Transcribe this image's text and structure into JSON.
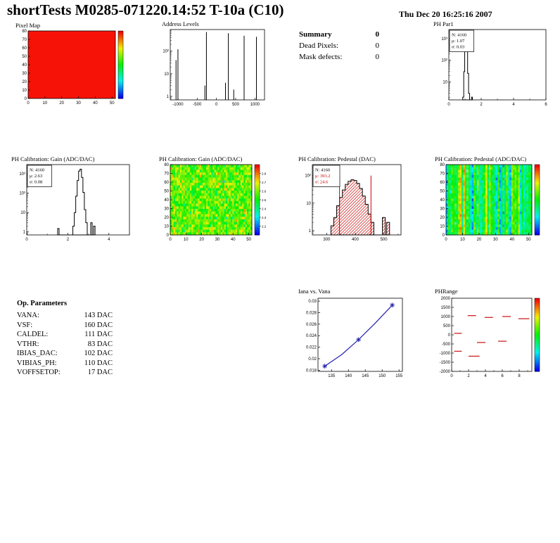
{
  "header": {
    "title": "shortTests M0285-071220.14:52 T-10a (C10)",
    "date": "Thu Dec 20 16:25:16 2007"
  },
  "summary": {
    "rows": [
      {
        "label": "Summary",
        "value": "0"
      },
      {
        "label": "Dead Pixels:",
        "value": "0"
      },
      {
        "label": "Mask defects:",
        "value": "0"
      }
    ]
  },
  "op_parameters": {
    "title": "Op. Parameters",
    "items": [
      {
        "name": "VANA:",
        "value": "143 DAC"
      },
      {
        "name": "VSF:",
        "value": "160 DAC"
      },
      {
        "name": "CALDEL:",
        "value": "111 DAC"
      },
      {
        "name": "VTHR:",
        "value": "83 DAC"
      },
      {
        "name": "IBIAS_DAC:",
        "value": "102 DAC"
      },
      {
        "name": "VIBIAS_PH:",
        "value": "110 DAC"
      },
      {
        "name": "VOFFSETOP:",
        "value": "17 DAC"
      }
    ]
  },
  "chart_data": [
    {
      "id": "pixel_map",
      "type": "heatmap",
      "title": "Pixel Map",
      "xlim": [
        0,
        52
      ],
      "xticks": [
        0,
        10,
        20,
        30,
        40,
        50
      ],
      "ylim": [
        0,
        80
      ],
      "yticks": [
        0,
        10,
        20,
        30,
        40,
        50,
        60,
        70,
        80
      ],
      "fill": "#f71207",
      "colorbar": {
        "min": 0,
        "max": 1,
        "labels": []
      }
    },
    {
      "id": "address_levels",
      "type": "spikes",
      "title": "Address Levels",
      "xlim": [
        -1200,
        1250
      ],
      "xticks": [
        -1000,
        -500,
        0,
        500,
        1000
      ],
      "yscale": "log",
      "ylim": [
        0.7,
        900
      ],
      "ydecades": [
        1,
        10,
        100
      ],
      "ydecadeLabels": [
        "1",
        "10",
        "10²"
      ],
      "spikes": [
        [
          -1050,
          40
        ],
        [
          -1000,
          120
        ],
        [
          -300,
          3
        ],
        [
          -260,
          700
        ],
        [
          235,
          4
        ],
        [
          310,
          620
        ],
        [
          450,
          2
        ],
        [
          720,
          480
        ],
        [
          1040,
          430
        ]
      ]
    },
    {
      "id": "ph_par1",
      "type": "hist",
      "title": "PH Par1",
      "stats": {
        "lines": [
          {
            "text": "N: 4160",
            "color": "#000000"
          },
          {
            "text": "μ: 1.07",
            "color": "#000000"
          },
          {
            "text": "σ: 0.03",
            "color": "#000000"
          }
        ]
      },
      "xlim": [
        0,
        6
      ],
      "xticks": [
        0,
        2,
        4,
        6
      ],
      "xminor": [
        1,
        3,
        5
      ],
      "yscale": "log",
      "ylim": [
        1.5,
        2600
      ],
      "ydecades": [
        10,
        100,
        1000
      ],
      "ydecadeLabels": [
        "10",
        "10²",
        "10³"
      ],
      "binWidth": 0.06,
      "bins": [
        [
          0.89,
          2
        ],
        [
          0.95,
          30
        ],
        [
          1.01,
          900
        ],
        [
          1.07,
          2000
        ],
        [
          1.13,
          400
        ],
        [
          1.19,
          25
        ],
        [
          1.25,
          3
        ],
        [
          1.43,
          2
        ]
      ]
    },
    {
      "id": "gain_hist",
      "type": "hist",
      "title": "PH Calibration: Gain (ADC/DAC)",
      "stats": {
        "lines": [
          {
            "text": "N: 4160",
            "color": "#000000"
          },
          {
            "text": "μ: 2.63",
            "color": "#000000"
          },
          {
            "text": "σ: 0.08",
            "color": "#000000"
          }
        ]
      },
      "xlim": [
        0,
        5
      ],
      "xticks": [
        0,
        2,
        4
      ],
      "xminor": [
        1,
        3,
        5
      ],
      "yscale": "log",
      "ylim": [
        0.7,
        3000
      ],
      "ydecades": [
        1,
        10,
        100,
        1000
      ],
      "ydecadeLabels": [
        "1",
        "10",
        "10²",
        "10³"
      ],
      "binWidth": 0.07,
      "bins": [
        [
          1.54,
          1.5
        ],
        [
          2.28,
          2
        ],
        [
          2.35,
          10
        ],
        [
          2.42,
          70
        ],
        [
          2.49,
          450
        ],
        [
          2.56,
          1400
        ],
        [
          2.63,
          1750
        ],
        [
          2.7,
          650
        ],
        [
          2.77,
          110
        ],
        [
          2.84,
          14
        ],
        [
          2.91,
          3
        ],
        [
          3.15,
          3
        ],
        [
          3.29,
          2
        ]
      ]
    },
    {
      "id": "gain_map",
      "type": "heatmap-noise",
      "title": "PH Calibration: Gain (ADC/DAC)",
      "xlim": [
        0,
        52
      ],
      "xticks": [
        0,
        10,
        20,
        30,
        40,
        50
      ],
      "ylim": [
        0,
        80
      ],
      "yticks": [
        0,
        10,
        20,
        30,
        40,
        50,
        60,
        70,
        80
      ],
      "noise": {
        "nx": 50,
        "ny": 27,
        "seed": 7,
        "mean": 0.6,
        "sd": 0.1,
        "col_sd": 0
      },
      "colorbar": {
        "min": 2.1,
        "max": 2.9,
        "labels": [
          2.2,
          2.3,
          2.4,
          2.5,
          2.6,
          2.7,
          2.8
        ]
      }
    },
    {
      "id": "pedestal_hist",
      "type": "hist",
      "title": "PH Calibration: Pedestal (DAC)",
      "stats": {
        "lines": [
          {
            "text": "N: 4160",
            "color": "#000000"
          },
          {
            "text": "μ: 393.2",
            "color": "#cc0000"
          },
          {
            "text": "σ: 24.6",
            "color": "#cc0000"
          }
        ]
      },
      "xlim": [
        250,
        560
      ],
      "xticks": [
        300,
        400,
        500
      ],
      "xminor": [
        350,
        450,
        550
      ],
      "yscale": "log",
      "ylim": [
        0.7,
        250
      ],
      "ydecades": [
        1,
        10,
        100
      ],
      "ydecadeLabels": [
        "1",
        "10",
        "10²"
      ],
      "binWidth": 10,
      "hatch": true,
      "marker_lines": {
        "x": [
          345,
          455
        ],
        "top": 100,
        "color": "#cc0000"
      },
      "bins": [
        [
          320,
          1.5
        ],
        [
          330,
          3
        ],
        [
          340,
          8
        ],
        [
          350,
          16
        ],
        [
          360,
          30
        ],
        [
          370,
          48
        ],
        [
          380,
          62
        ],
        [
          390,
          70
        ],
        [
          400,
          66
        ],
        [
          410,
          52
        ],
        [
          420,
          34
        ],
        [
          430,
          18
        ],
        [
          440,
          9
        ],
        [
          450,
          4
        ],
        [
          460,
          2
        ],
        [
          500,
          3
        ],
        [
          515,
          2
        ]
      ]
    },
    {
      "id": "pedestal_map",
      "type": "heatmap-noise",
      "title": "PH Calibration: Pedestal (ADC/DAC)",
      "xlim": [
        0,
        52
      ],
      "xticks": [
        0,
        10,
        20,
        30,
        40,
        50
      ],
      "ylim": [
        0,
        80
      ],
      "yticks": [
        0,
        10,
        20,
        30,
        40,
        50,
        60,
        70,
        80
      ],
      "noise": {
        "nx": 50,
        "ny": 27,
        "seed": 23,
        "mean": 0.46,
        "sd": 0.05,
        "col_sd": 0.15
      },
      "colorbar": {
        "min": 0,
        "max": 1,
        "labels": []
      }
    },
    {
      "id": "iana",
      "type": "line",
      "title": "Iana vs. Vana",
      "xlim": [
        131,
        156
      ],
      "xticks": [
        135,
        140,
        145,
        150,
        155
      ],
      "ylim": [
        0.0178,
        0.0305
      ],
      "yticks": [
        0.018,
        0.02,
        0.022,
        0.024,
        0.026,
        0.028,
        0.03
      ],
      "ytickLabels": [
        "0.018",
        "0.02",
        "0.022",
        "0.024",
        "0.026",
        "0.028",
        "0.03"
      ],
      "color": "#2222aa",
      "points": [
        [
          133,
          0.0187
        ],
        [
          138,
          0.0207
        ],
        [
          143,
          0.0233
        ],
        [
          148,
          0.0262
        ],
        [
          153,
          0.0293
        ]
      ],
      "markers": [
        [
          133,
          0.0187
        ],
        [
          143,
          0.0233
        ],
        [
          153,
          0.0293
        ]
      ]
    },
    {
      "id": "phrange",
      "type": "segments",
      "title": "PHRange",
      "xlim": [
        0,
        9.5
      ],
      "xticks": [
        0,
        2,
        4,
        6,
        8
      ],
      "xminor": [
        1,
        3,
        5,
        7,
        9
      ],
      "ylim": [
        -2000,
        2000
      ],
      "yticks": [
        -2000,
        -1500,
        -1000,
        -500,
        0,
        500,
        1000,
        1500,
        2000
      ],
      "ytickLabels": [
        "-2000",
        "-1500",
        "-1000",
        "-500",
        "0",
        "500",
        "1000",
        "1500",
        "2000"
      ],
      "color": "#cc2222",
      "segments": [
        [
          0.3,
          1.2,
          80
        ],
        [
          1.9,
          2.9,
          1050
        ],
        [
          3.9,
          4.9,
          950
        ],
        [
          6.0,
          7.0,
          1000
        ],
        [
          7.9,
          9.2,
          880
        ],
        [
          3.0,
          4.0,
          -420
        ],
        [
          5.5,
          6.5,
          -350
        ],
        [
          0.3,
          1.2,
          -900
        ],
        [
          2.0,
          3.3,
          -1170
        ]
      ],
      "colorbar": {
        "min": 0,
        "max": 1,
        "labels": []
      }
    }
  ]
}
